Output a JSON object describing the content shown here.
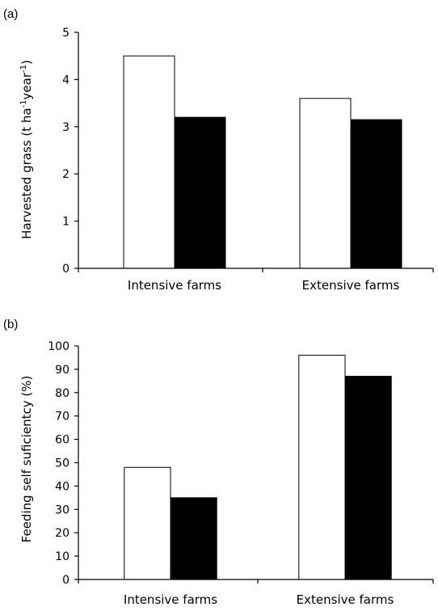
{
  "chart_data": [
    {
      "panel_label": "(a)",
      "type": "bar",
      "categories": [
        "Intensive farms",
        "Extensive farms"
      ],
      "series": [
        {
          "fill": "#ffffff",
          "values": [
            4.5,
            3.6
          ]
        },
        {
          "fill": "#000000",
          "values": [
            3.2,
            3.15
          ]
        }
      ],
      "ylabel_main": "Harvested grass (t ha",
      "ylabel_sup1": "-1",
      "ylabel_mid": "year",
      "ylabel_sup2": "-1",
      "ylabel_end": ")",
      "ylim": [
        0,
        5
      ],
      "yticks": [
        "0",
        "1",
        "2",
        "3",
        "4",
        "5"
      ],
      "grid": false
    },
    {
      "panel_label": "(b)",
      "type": "bar",
      "categories": [
        "Intensive farms",
        "Extensive farms"
      ],
      "series": [
        {
          "fill": "#ffffff",
          "values": [
            48,
            96
          ]
        },
        {
          "fill": "#000000",
          "values": [
            35,
            87
          ]
        }
      ],
      "ylabel": "Feeding self suficientcy (%)",
      "ylim": [
        0,
        100
      ],
      "yticks": [
        "0",
        "10",
        "20",
        "30",
        "40",
        "50",
        "60",
        "70",
        "80",
        "90",
        "100"
      ],
      "grid": false
    }
  ]
}
